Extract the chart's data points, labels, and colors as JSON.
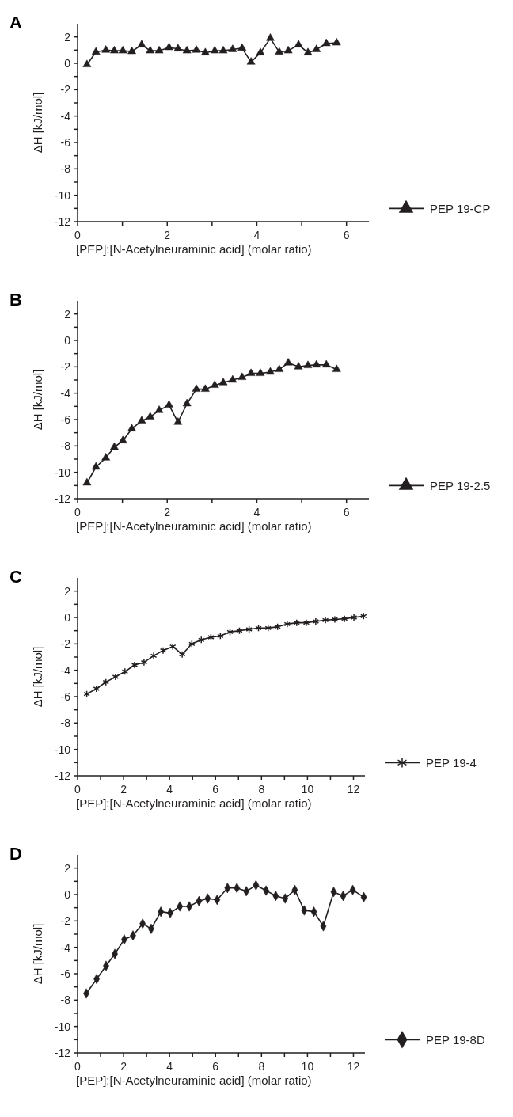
{
  "chart_data": [
    {
      "type": "line",
      "title": "A",
      "xlabel": "[PEP]:[N-Acetylneuraminic acid] (molar ratio)",
      "ylabel": "ΔH [kJ/mol]",
      "xlim": [
        0,
        6.5
      ],
      "xticks": [
        0,
        {
          "value": 1,
          "label": null
        },
        2,
        {
          "value": 3,
          "label": null
        },
        4,
        {
          "value": 5,
          "label": null
        },
        6
      ],
      "ylim": [
        -12,
        3
      ],
      "yticks": [
        -12,
        {
          "value": -11,
          "label": null
        },
        -10,
        {
          "value": -9,
          "label": null
        },
        -8,
        {
          "value": -7,
          "label": null
        },
        -6,
        {
          "value": -5,
          "label": null
        },
        -4,
        {
          "value": -3,
          "label": null
        },
        -2,
        {
          "value": -1,
          "label": null
        },
        0,
        {
          "value": 1,
          "label": null
        },
        2
      ],
      "marker": "triangle",
      "legend": "right",
      "grid": false,
      "x": [
        0.21,
        0.41,
        0.63,
        0.82,
        1.01,
        1.21,
        1.43,
        1.62,
        1.82,
        2.04,
        2.24,
        2.44,
        2.65,
        2.85,
        3.06,
        3.25,
        3.46,
        3.67,
        3.87,
        4.08,
        4.3,
        4.5,
        4.7,
        4.93,
        5.14,
        5.33,
        5.55,
        5.78
      ],
      "series": [
        {
          "name": "PEP 19-CP",
          "color": "#231f20",
          "values": [
            -0.1,
            0.85,
            1.0,
            0.95,
            0.95,
            0.9,
            1.4,
            0.95,
            0.95,
            1.2,
            1.1,
            0.95,
            1.0,
            0.8,
            0.95,
            0.95,
            1.05,
            1.15,
            0.1,
            0.8,
            1.9,
            0.85,
            0.95,
            1.4,
            0.8,
            1.05,
            1.5,
            1.55
          ]
        }
      ]
    },
    {
      "type": "line",
      "title": "B",
      "xlabel": "[PEP]:[N-Acetylneuraminic acid] (molar ratio)",
      "ylabel": "ΔH [kJ/mol]",
      "xlim": [
        0,
        6.5
      ],
      "xticks": [
        0,
        {
          "value": 1,
          "label": null
        },
        2,
        {
          "value": 3,
          "label": null
        },
        4,
        {
          "value": 5,
          "label": null
        },
        6
      ],
      "ylim": [
        -12,
        3
      ],
      "yticks": [
        -12,
        {
          "value": -11,
          "label": null
        },
        -10,
        {
          "value": -9,
          "label": null
        },
        -8,
        {
          "value": -7,
          "label": null
        },
        -6,
        {
          "value": -5,
          "label": null
        },
        -4,
        {
          "value": -3,
          "label": null
        },
        -2,
        {
          "value": -1,
          "label": null
        },
        0,
        {
          "value": 1,
          "label": null
        },
        2
      ],
      "marker": "triangle",
      "legend": "right",
      "grid": false,
      "x": [
        0.21,
        0.41,
        0.63,
        0.82,
        1.01,
        1.21,
        1.43,
        1.62,
        1.82,
        2.04,
        2.24,
        2.44,
        2.65,
        2.85,
        3.06,
        3.25,
        3.46,
        3.67,
        3.87,
        4.08,
        4.3,
        4.5,
        4.7,
        4.93,
        5.14,
        5.33,
        5.55,
        5.78
      ],
      "series": [
        {
          "name": "PEP 19-2.5",
          "color": "#231f20",
          "values": [
            -10.8,
            -9.6,
            -8.9,
            -8.1,
            -7.6,
            -6.7,
            -6.1,
            -5.8,
            -5.3,
            -4.9,
            -6.2,
            -4.8,
            -3.7,
            -3.7,
            -3.4,
            -3.2,
            -3.0,
            -2.8,
            -2.5,
            -2.5,
            -2.4,
            -2.2,
            -1.7,
            -2.0,
            -1.9,
            -1.85,
            -1.85,
            -2.2
          ]
        }
      ]
    },
    {
      "type": "line",
      "title": "C",
      "xlabel": "[PEP]:[N-Acetylneuraminic acid] (molar ratio)",
      "ylabel": "ΔH [kJ/mol]",
      "xlim": [
        0,
        12.5
      ],
      "xticks": [
        0,
        {
          "value": 1,
          "label": null
        },
        2,
        {
          "value": 3,
          "label": null
        },
        4,
        {
          "value": 5,
          "label": null
        },
        6,
        {
          "value": 7,
          "label": null
        },
        8,
        {
          "value": 9,
          "label": null
        },
        10,
        {
          "value": 11,
          "label": null
        },
        12
      ],
      "ylim": [
        -12,
        3
      ],
      "yticks": [
        -12,
        {
          "value": -11,
          "label": null
        },
        -10,
        {
          "value": -9,
          "label": null
        },
        -8,
        {
          "value": -7,
          "label": null
        },
        -6,
        {
          "value": -5,
          "label": null
        },
        -4,
        {
          "value": -3,
          "label": null
        },
        -2,
        {
          "value": -1,
          "label": null
        },
        0,
        {
          "value": 1,
          "label": null
        },
        2
      ],
      "marker": "cross",
      "legend": "right",
      "grid": false,
      "x": [
        0.4,
        0.82,
        1.23,
        1.65,
        2.06,
        2.48,
        2.89,
        3.31,
        3.72,
        4.14,
        4.55,
        4.97,
        5.38,
        5.8,
        6.21,
        6.63,
        7.04,
        7.46,
        7.87,
        8.29,
        8.7,
        9.12,
        9.53,
        9.95,
        10.36,
        10.78,
        11.19,
        11.61,
        12.02,
        12.44
      ],
      "series": [
        {
          "name": "PEP 19-4",
          "color": "#231f20",
          "values": [
            -5.8,
            -5.4,
            -4.9,
            -4.5,
            -4.1,
            -3.6,
            -3.4,
            -2.9,
            -2.5,
            -2.2,
            -2.8,
            -2.0,
            -1.7,
            -1.5,
            -1.4,
            -1.1,
            -1.0,
            -0.9,
            -0.8,
            -0.8,
            -0.7,
            -0.5,
            -0.4,
            -0.4,
            -0.3,
            -0.2,
            -0.15,
            -0.1,
            0.0,
            0.1
          ]
        }
      ]
    },
    {
      "type": "line",
      "title": "D",
      "xlabel": "[PEP]:[N-Acetylneuraminic acid] (molar ratio)",
      "ylabel": "ΔH [kJ/mol]",
      "xlim": [
        0,
        12.5
      ],
      "xticks": [
        0,
        {
          "value": 1,
          "label": null
        },
        2,
        {
          "value": 3,
          "label": null
        },
        4,
        {
          "value": 5,
          "label": null
        },
        6,
        {
          "value": 7,
          "label": null
        },
        8,
        {
          "value": 9,
          "label": null
        },
        10,
        {
          "value": 11,
          "label": null
        },
        12
      ],
      "ylim": [
        -12,
        3
      ],
      "yticks": [
        -12,
        {
          "value": -11,
          "label": null
        },
        -10,
        {
          "value": -9,
          "label": null
        },
        -8,
        {
          "value": -7,
          "label": null
        },
        -6,
        {
          "value": -5,
          "label": null
        },
        -4,
        {
          "value": -3,
          "label": null
        },
        -2,
        {
          "value": -1,
          "label": null
        },
        0,
        {
          "value": 1,
          "label": null
        },
        2
      ],
      "marker": "diamond",
      "legend": "right",
      "grid": false,
      "x": [
        0.38,
        0.83,
        1.24,
        1.62,
        2.03,
        2.41,
        2.83,
        3.2,
        3.62,
        4.03,
        4.45,
        4.86,
        5.28,
        5.66,
        6.07,
        6.52,
        6.93,
        7.34,
        7.76,
        8.2,
        8.62,
        9.03,
        9.45,
        9.86,
        10.28,
        10.69,
        11.14,
        11.55,
        11.97,
        12.45
      ],
      "series": [
        {
          "name": "PEP 19-8D",
          "color": "#231f20",
          "values": [
            -7.5,
            -6.4,
            -5.4,
            -4.5,
            -3.4,
            -3.1,
            -2.2,
            -2.6,
            -1.3,
            -1.4,
            -0.9,
            -0.9,
            -0.5,
            -0.3,
            -0.4,
            0.5,
            0.5,
            0.25,
            0.7,
            0.3,
            -0.1,
            -0.3,
            0.35,
            -1.2,
            -1.3,
            -2.4,
            0.2,
            -0.1,
            0.35,
            -0.2
          ]
        }
      ]
    }
  ]
}
